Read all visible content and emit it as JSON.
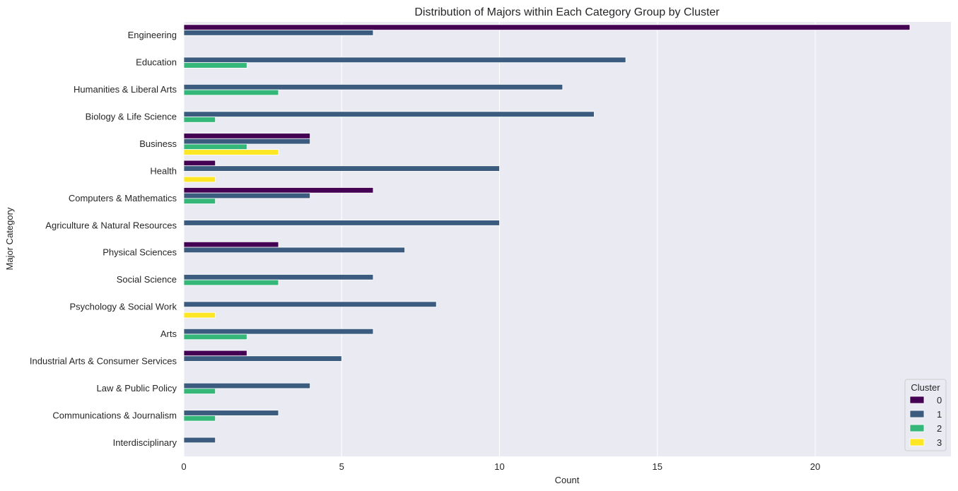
{
  "chart_data": {
    "type": "bar",
    "orientation": "horizontal",
    "title": "Distribution of Majors within Each Category Group by Cluster",
    "xlabel": "Count",
    "ylabel": "Major Category",
    "xlim": [
      0,
      24.3
    ],
    "xticks": [
      0,
      5,
      10,
      15,
      20
    ],
    "grid": true,
    "legend": {
      "title": "Cluster",
      "placement": "lower-right"
    },
    "categories": [
      "Engineering",
      "Education",
      "Humanities & Liberal Arts",
      "Biology & Life Science",
      "Business",
      "Health",
      "Computers & Mathematics",
      "Agriculture & Natural Resources",
      "Physical Sciences",
      "Social Science",
      "Psychology & Social Work",
      "Arts",
      "Industrial Arts & Consumer Services",
      "Law & Public Policy",
      "Communications & Journalism",
      "Interdisciplinary"
    ],
    "series": [
      {
        "name": "0",
        "color": "#440154",
        "values": [
          23,
          0,
          0,
          0,
          4,
          1,
          6,
          0,
          3,
          0,
          0,
          0,
          2,
          0,
          0,
          0
        ]
      },
      {
        "name": "1",
        "color": "#3b5c7e",
        "values": [
          6,
          14,
          12,
          13,
          4,
          10,
          4,
          10,
          7,
          6,
          8,
          6,
          5,
          4,
          3,
          1
        ]
      },
      {
        "name": "2",
        "color": "#35b779",
        "values": [
          0,
          2,
          3,
          1,
          2,
          0,
          1,
          0,
          0,
          3,
          0,
          2,
          0,
          1,
          1,
          0
        ]
      },
      {
        "name": "3",
        "color": "#fde725",
        "values": [
          0,
          0,
          0,
          0,
          3,
          1,
          0,
          0,
          0,
          0,
          1,
          0,
          0,
          0,
          0,
          0
        ]
      }
    ]
  }
}
